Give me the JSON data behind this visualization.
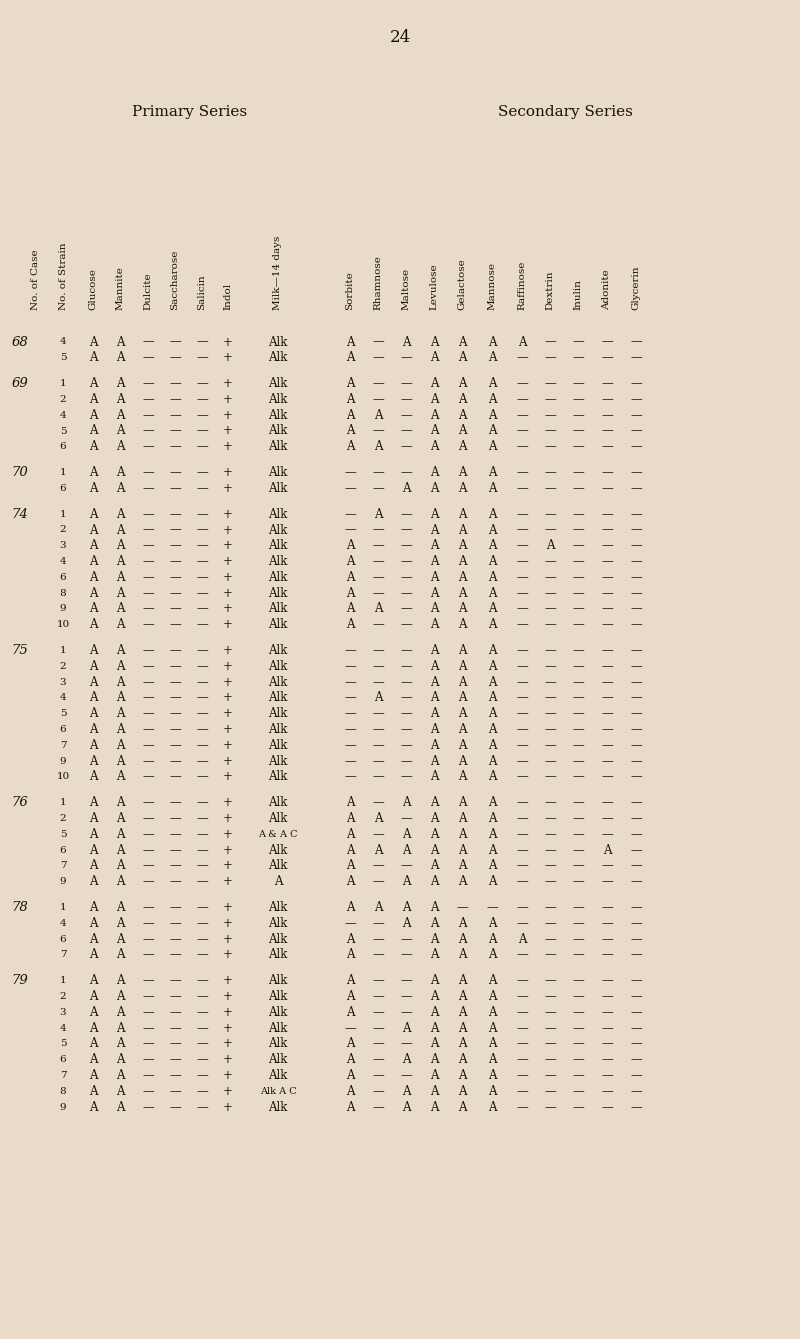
{
  "page_number": "24",
  "bg_color": "#e8dcc8",
  "text_color": "#1a1008",
  "primary_series_label": "Primary Series",
  "secondary_series_label": "Secondary Series",
  "col_headers": [
    {
      "key": "case",
      "label": "No. of Case"
    },
    {
      "key": "strain",
      "label": "No. of Strain"
    },
    {
      "key": "gluc",
      "label": "Glucose"
    },
    {
      "key": "mann",
      "label": "Mannite"
    },
    {
      "key": "dulc",
      "label": "Dulcite"
    },
    {
      "key": "sacc",
      "label": "Saccharose"
    },
    {
      "key": "sali",
      "label": "Salicin"
    },
    {
      "key": "indo",
      "label": "Indol"
    },
    {
      "key": "milk",
      "label": "Milk—14 days"
    },
    {
      "key": "sorb",
      "label": "Sorbite"
    },
    {
      "key": "rham",
      "label": "Rhamnose"
    },
    {
      "key": "malt",
      "label": "Maltose"
    },
    {
      "key": "levu",
      "label": "Levulose"
    },
    {
      "key": "gela",
      "label": "Gelactose"
    },
    {
      "key": "manno",
      "label": "Mannose"
    },
    {
      "key": "raff",
      "label": "Raffinose"
    },
    {
      "key": "dext",
      "label": "Dextrin"
    },
    {
      "key": "inul",
      "label": "Inulin"
    },
    {
      "key": "adon",
      "label": "Adonite"
    },
    {
      "key": "glyc",
      "label": "Glycerin"
    }
  ],
  "col_x": {
    "case": 36,
    "strain": 63,
    "gluc": 93,
    "mann": 120,
    "dulc": 148,
    "sacc": 175,
    "sali": 202,
    "indo": 228,
    "milk": 278,
    "sorb": 350,
    "rham": 378,
    "malt": 406,
    "levu": 434,
    "gela": 462,
    "manno": 492,
    "raff": 522,
    "dext": 550,
    "inul": 578,
    "adon": 607,
    "glyc": 636
  },
  "rows": [
    {
      "case": "68",
      "strain": "4",
      "gluc": "A",
      "mann": "A",
      "dulc": "—",
      "sacc": "—",
      "sali": "—",
      "indo": "+",
      "milk": "Alk",
      "sorb": "A",
      "rham": "—",
      "malt": "A",
      "levu": "A",
      "gela": "A",
      "manno": "A",
      "raff": "A",
      "dext": "—",
      "inul": "—",
      "adon": "—",
      "glyc": "—"
    },
    {
      "case": "",
      "strain": "5",
      "gluc": "A",
      "mann": "A",
      "dulc": "—",
      "sacc": "—",
      "sali": "—",
      "indo": "+",
      "milk": "Alk",
      "sorb": "A",
      "rham": "—",
      "malt": "—",
      "levu": "A",
      "gela": "A",
      "manno": "A",
      "raff": "—",
      "dext": "—",
      "inul": "—",
      "adon": "—",
      "glyc": "—"
    },
    {
      "case": "69",
      "strain": "1",
      "gluc": "A",
      "mann": "A",
      "dulc": "—",
      "sacc": "—",
      "sali": "—",
      "indo": "+",
      "milk": "Alk",
      "sorb": "A",
      "rham": "—",
      "malt": "—",
      "levu": "A",
      "gela": "A",
      "manno": "A",
      "raff": "—",
      "dext": "—",
      "inul": "—",
      "adon": "—",
      "glyc": "—"
    },
    {
      "case": "",
      "strain": "2",
      "gluc": "A",
      "mann": "A",
      "dulc": "—",
      "sacc": "—",
      "sali": "—",
      "indo": "+",
      "milk": "Alk",
      "sorb": "A",
      "rham": "—",
      "malt": "—",
      "levu": "A",
      "gela": "A",
      "manno": "A",
      "raff": "—",
      "dext": "—",
      "inul": "—",
      "adon": "—",
      "glyc": "—"
    },
    {
      "case": "",
      "strain": "4",
      "gluc": "A",
      "mann": "A",
      "dulc": "—",
      "sacc": "—",
      "sali": "—",
      "indo": "+",
      "milk": "Alk",
      "sorb": "A",
      "rham": "A",
      "malt": "—",
      "levu": "A",
      "gela": "A",
      "manno": "A",
      "raff": "—",
      "dext": "—",
      "inul": "—",
      "adon": "—",
      "glyc": "—"
    },
    {
      "case": "",
      "strain": "5",
      "gluc": "A",
      "mann": "A",
      "dulc": "—",
      "sacc": "—",
      "sali": "—",
      "indo": "+",
      "milk": "Alk",
      "sorb": "A",
      "rham": "—",
      "malt": "—",
      "levu": "A",
      "gela": "A",
      "manno": "A",
      "raff": "—",
      "dext": "—",
      "inul": "—",
      "adon": "—",
      "glyc": "—"
    },
    {
      "case": "",
      "strain": "6",
      "gluc": "A",
      "mann": "A",
      "dulc": "—",
      "sacc": "—",
      "sali": "—",
      "indo": "+",
      "milk": "Alk",
      "sorb": "A",
      "rham": "A",
      "malt": "—",
      "levu": "A",
      "gela": "A",
      "manno": "A",
      "raff": "—",
      "dext": "—",
      "inul": "—",
      "adon": "—",
      "glyc": "—"
    },
    {
      "case": "70",
      "strain": "1",
      "gluc": "A",
      "mann": "A",
      "dulc": "—",
      "sacc": "—",
      "sali": "—",
      "indo": "+",
      "milk": "Alk",
      "sorb": "—",
      "rham": "—",
      "malt": "—",
      "levu": "A",
      "gela": "A",
      "manno": "A",
      "raff": "—",
      "dext": "—",
      "inul": "—",
      "adon": "—",
      "glyc": "—"
    },
    {
      "case": "",
      "strain": "6",
      "gluc": "A",
      "mann": "A",
      "dulc": "—",
      "sacc": "—",
      "sali": "—",
      "indo": "+",
      "milk": "Alk",
      "sorb": "—",
      "rham": "—",
      "malt": "A",
      "levu": "A",
      "gela": "A",
      "manno": "A",
      "raff": "—",
      "dext": "—",
      "inul": "—",
      "adon": "—",
      "glyc": "—"
    },
    {
      "case": "74",
      "strain": "1",
      "gluc": "A",
      "mann": "A",
      "dulc": "—",
      "sacc": "—",
      "sali": "—",
      "indo": "+",
      "milk": "Alk",
      "sorb": "—",
      "rham": "A",
      "malt": "—",
      "levu": "A",
      "gela": "A",
      "manno": "A",
      "raff": "—",
      "dext": "—",
      "inul": "—",
      "adon": "—",
      "glyc": "—"
    },
    {
      "case": "",
      "strain": "2",
      "gluc": "A",
      "mann": "A",
      "dulc": "—",
      "sacc": "—",
      "sali": "—",
      "indo": "+",
      "milk": "Alk",
      "sorb": "—",
      "rham": "—",
      "malt": "—",
      "levu": "A",
      "gela": "A",
      "manno": "A",
      "raff": "—",
      "dext": "—",
      "inul": "—",
      "adon": "—",
      "glyc": "—"
    },
    {
      "case": "",
      "strain": "3",
      "gluc": "A",
      "mann": "A",
      "dulc": "—",
      "sacc": "—",
      "sali": "—",
      "indo": "+",
      "milk": "Alk",
      "sorb": "A",
      "rham": "—",
      "malt": "—",
      "levu": "A",
      "gela": "A",
      "manno": "A",
      "raff": "—",
      "dext": "A",
      "inul": "—",
      "adon": "—",
      "glyc": "—"
    },
    {
      "case": "",
      "strain": "4",
      "gluc": "A",
      "mann": "A",
      "dulc": "—",
      "sacc": "—",
      "sali": "—",
      "indo": "+",
      "milk": "Alk",
      "sorb": "A",
      "rham": "—",
      "malt": "—",
      "levu": "A",
      "gela": "A",
      "manno": "A",
      "raff": "—",
      "dext": "—",
      "inul": "—",
      "adon": "—",
      "glyc": "—"
    },
    {
      "case": "",
      "strain": "6",
      "gluc": "A",
      "mann": "A",
      "dulc": "—",
      "sacc": "—",
      "sali": "—",
      "indo": "+",
      "milk": "Alk",
      "sorb": "A",
      "rham": "—",
      "malt": "—",
      "levu": "A",
      "gela": "A",
      "manno": "A",
      "raff": "—",
      "dext": "—",
      "inul": "—",
      "adon": "—",
      "glyc": "—"
    },
    {
      "case": "",
      "strain": "8",
      "gluc": "A",
      "mann": "A",
      "dulc": "—",
      "sacc": "—",
      "sali": "—",
      "indo": "+",
      "milk": "Alk",
      "sorb": "A",
      "rham": "—",
      "malt": "—",
      "levu": "A",
      "gela": "A",
      "manno": "A",
      "raff": "—",
      "dext": "—",
      "inul": "—",
      "adon": "—",
      "glyc": "—"
    },
    {
      "case": "",
      "strain": "9",
      "gluc": "A",
      "mann": "A",
      "dulc": "—",
      "sacc": "—",
      "sali": "—",
      "indo": "+",
      "milk": "Alk",
      "sorb": "A",
      "rham": "A",
      "malt": "—",
      "levu": "A",
      "gela": "A",
      "manno": "A",
      "raff": "—",
      "dext": "—",
      "inul": "—",
      "adon": "—",
      "glyc": "—"
    },
    {
      "case": "",
      "strain": "10",
      "gluc": "A",
      "mann": "A",
      "dulc": "—",
      "sacc": "—",
      "sali": "—",
      "indo": "+",
      "milk": "Alk",
      "sorb": "A",
      "rham": "—",
      "malt": "—",
      "levu": "A",
      "gela": "A",
      "manno": "A",
      "raff": "—",
      "dext": "—",
      "inul": "—",
      "adon": "—",
      "glyc": "—"
    },
    {
      "case": "75",
      "strain": "1",
      "gluc": "A",
      "mann": "A",
      "dulc": "—",
      "sacc": "—",
      "sali": "—",
      "indo": "+",
      "milk": "Alk",
      "sorb": "—",
      "rham": "—",
      "malt": "—",
      "levu": "A",
      "gela": "A",
      "manno": "A",
      "raff": "—",
      "dext": "—",
      "inul": "—",
      "adon": "—",
      "glyc": "—"
    },
    {
      "case": "",
      "strain": "2",
      "gluc": "A",
      "mann": "A",
      "dulc": "—",
      "sacc": "—",
      "sali": "—",
      "indo": "+",
      "milk": "Alk",
      "sorb": "—",
      "rham": "—",
      "malt": "—",
      "levu": "A",
      "gela": "A",
      "manno": "A",
      "raff": "—",
      "dext": "—",
      "inul": "—",
      "adon": "—",
      "glyc": "—"
    },
    {
      "case": "",
      "strain": "3",
      "gluc": "A",
      "mann": "A",
      "dulc": "—",
      "sacc": "—",
      "sali": "—",
      "indo": "+",
      "milk": "Alk",
      "sorb": "—",
      "rham": "—",
      "malt": "—",
      "levu": "A",
      "gela": "A",
      "manno": "A",
      "raff": "—",
      "dext": "—",
      "inul": "—",
      "adon": "—",
      "glyc": "—"
    },
    {
      "case": "",
      "strain": "4",
      "gluc": "A",
      "mann": "A",
      "dulc": "—",
      "sacc": "—",
      "sali": "—",
      "indo": "+",
      "milk": "Alk",
      "sorb": "—",
      "rham": "A",
      "malt": "—",
      "levu": "A",
      "gela": "A",
      "manno": "A",
      "raff": "—",
      "dext": "—",
      "inul": "—",
      "adon": "—",
      "glyc": "—"
    },
    {
      "case": "",
      "strain": "5",
      "gluc": "A",
      "mann": "A",
      "dulc": "—",
      "sacc": "—",
      "sali": "—",
      "indo": "+",
      "milk": "Alk",
      "sorb": "—",
      "rham": "—",
      "malt": "—",
      "levu": "A",
      "gela": "A",
      "manno": "A",
      "raff": "—",
      "dext": "—",
      "inul": "—",
      "adon": "—",
      "glyc": "—"
    },
    {
      "case": "",
      "strain": "6",
      "gluc": "A",
      "mann": "A",
      "dulc": "—",
      "sacc": "—",
      "sali": "—",
      "indo": "+",
      "milk": "Alk",
      "sorb": "—",
      "rham": "—",
      "malt": "—",
      "levu": "A",
      "gela": "A",
      "manno": "A",
      "raff": "—",
      "dext": "—",
      "inul": "—",
      "adon": "—",
      "glyc": "—"
    },
    {
      "case": "",
      "strain": "7",
      "gluc": "A",
      "mann": "A",
      "dulc": "—",
      "sacc": "—",
      "sali": "—",
      "indo": "+",
      "milk": "Alk",
      "sorb": "—",
      "rham": "—",
      "malt": "—",
      "levu": "A",
      "gela": "A",
      "manno": "A",
      "raff": "—",
      "dext": "—",
      "inul": "—",
      "adon": "—",
      "glyc": "—"
    },
    {
      "case": "",
      "strain": "9",
      "gluc": "A",
      "mann": "A",
      "dulc": "—",
      "sacc": "—",
      "sali": "—",
      "indo": "+",
      "milk": "Alk",
      "sorb": "—",
      "rham": "—",
      "malt": "—",
      "levu": "A",
      "gela": "A",
      "manno": "A",
      "raff": "—",
      "dext": "—",
      "inul": "—",
      "adon": "—",
      "glyc": "—"
    },
    {
      "case": "",
      "strain": "10",
      "gluc": "A",
      "mann": "A",
      "dulc": "—",
      "sacc": "—",
      "sali": "—",
      "indo": "+",
      "milk": "Alk",
      "sorb": "—",
      "rham": "—",
      "malt": "—",
      "levu": "A",
      "gela": "A",
      "manno": "A",
      "raff": "—",
      "dext": "—",
      "inul": "—",
      "adon": "—",
      "glyc": "—"
    },
    {
      "case": "76",
      "strain": "1",
      "gluc": "A",
      "mann": "A",
      "dulc": "—",
      "sacc": "—",
      "sali": "—",
      "indo": "+",
      "milk": "Alk",
      "sorb": "A",
      "rham": "—",
      "malt": "A",
      "levu": "A",
      "gela": "A",
      "manno": "A",
      "raff": "—",
      "dext": "—",
      "inul": "—",
      "adon": "—",
      "glyc": "—"
    },
    {
      "case": "",
      "strain": "2",
      "gluc": "A",
      "mann": "A",
      "dulc": "—",
      "sacc": "—",
      "sali": "—",
      "indo": "+",
      "milk": "Alk",
      "sorb": "A",
      "rham": "A",
      "malt": "—",
      "levu": "A",
      "gela": "A",
      "manno": "A",
      "raff": "—",
      "dext": "—",
      "inul": "—",
      "adon": "—",
      "glyc": "—"
    },
    {
      "case": "",
      "strain": "5",
      "gluc": "A",
      "mann": "A",
      "dulc": "—",
      "sacc": "—",
      "sali": "—",
      "indo": "+",
      "milk": "A & A C",
      "sorb": "A",
      "rham": "—",
      "malt": "A",
      "levu": "A",
      "gela": "A",
      "manno": "A",
      "raff": "—",
      "dext": "—",
      "inul": "—",
      "adon": "—",
      "glyc": "—"
    },
    {
      "case": "",
      "strain": "6",
      "gluc": "A",
      "mann": "A",
      "dulc": "—",
      "sacc": "—",
      "sali": "—",
      "indo": "+",
      "milk": "Alk",
      "sorb": "A",
      "rham": "A",
      "malt": "A",
      "levu": "A",
      "gela": "A",
      "manno": "A",
      "raff": "—",
      "dext": "—",
      "inul": "—",
      "adon": "A",
      "glyc": "—"
    },
    {
      "case": "",
      "strain": "7",
      "gluc": "A",
      "mann": "A",
      "dulc": "—",
      "sacc": "—",
      "sali": "—",
      "indo": "+",
      "milk": "Alk",
      "sorb": "A",
      "rham": "—",
      "malt": "—",
      "levu": "A",
      "gela": "A",
      "manno": "A",
      "raff": "—",
      "dext": "—",
      "inul": "—",
      "adon": "—",
      "glyc": "—"
    },
    {
      "case": "",
      "strain": "9",
      "gluc": "A",
      "mann": "A",
      "dulc": "—",
      "sacc": "—",
      "sali": "—",
      "indo": "+",
      "milk": "A",
      "sorb": "A",
      "rham": "—",
      "malt": "A",
      "levu": "A",
      "gela": "A",
      "manno": "A",
      "raff": "—",
      "dext": "—",
      "inul": "—",
      "adon": "—",
      "glyc": "—"
    },
    {
      "case": "78",
      "strain": "1",
      "gluc": "A",
      "mann": "A",
      "dulc": "—",
      "sacc": "—",
      "sali": "—",
      "indo": "+",
      "milk": "Alk",
      "sorb": "A",
      "rham": "A",
      "malt": "A",
      "levu": "A",
      "gela": "—",
      "manno": "—",
      "raff": "—",
      "dext": "—",
      "inul": "—",
      "adon": "—",
      "glyc": "—"
    },
    {
      "case": "",
      "strain": "4",
      "gluc": "A",
      "mann": "A",
      "dulc": "—",
      "sacc": "—",
      "sali": "—",
      "indo": "+",
      "milk": "Alk",
      "sorb": "—",
      "rham": "—",
      "malt": "A",
      "levu": "A",
      "gela": "A",
      "manno": "A",
      "raff": "—",
      "dext": "—",
      "inul": "—",
      "adon": "—",
      "glyc": "—"
    },
    {
      "case": "",
      "strain": "6",
      "gluc": "A",
      "mann": "A",
      "dulc": "—",
      "sacc": "—",
      "sali": "—",
      "indo": "+",
      "milk": "Alk",
      "sorb": "A",
      "rham": "—",
      "malt": "—",
      "levu": "A",
      "gela": "A",
      "manno": "A",
      "raff": "A",
      "dext": "—",
      "inul": "—",
      "adon": "—",
      "glyc": "—"
    },
    {
      "case": "",
      "strain": "7",
      "gluc": "A",
      "mann": "A",
      "dulc": "—",
      "sacc": "—",
      "sali": "—",
      "indo": "+",
      "milk": "Alk",
      "sorb": "A",
      "rham": "—",
      "malt": "—",
      "levu": "A",
      "gela": "A",
      "manno": "A",
      "raff": "—",
      "dext": "—",
      "inul": "—",
      "adon": "—",
      "glyc": "—"
    },
    {
      "case": "79",
      "strain": "1",
      "gluc": "A",
      "mann": "A",
      "dulc": "—",
      "sacc": "—",
      "sali": "—",
      "indo": "+",
      "milk": "Alk",
      "sorb": "A",
      "rham": "—",
      "malt": "—",
      "levu": "A",
      "gela": "A",
      "manno": "A",
      "raff": "—",
      "dext": "—",
      "inul": "—",
      "adon": "—",
      "glyc": "—"
    },
    {
      "case": "",
      "strain": "2",
      "gluc": "A",
      "mann": "A",
      "dulc": "—",
      "sacc": "—",
      "sali": "—",
      "indo": "+",
      "milk": "Alk",
      "sorb": "A",
      "rham": "—",
      "malt": "—",
      "levu": "A",
      "gela": "A",
      "manno": "A",
      "raff": "—",
      "dext": "—",
      "inul": "—",
      "adon": "—",
      "glyc": "—"
    },
    {
      "case": "",
      "strain": "3",
      "gluc": "A",
      "mann": "A",
      "dulc": "—",
      "sacc": "—",
      "sali": "—",
      "indo": "+",
      "milk": "Alk",
      "sorb": "A",
      "rham": "—",
      "malt": "—",
      "levu": "A",
      "gela": "A",
      "manno": "A",
      "raff": "—",
      "dext": "—",
      "inul": "—",
      "adon": "—",
      "glyc": "—"
    },
    {
      "case": "",
      "strain": "4",
      "gluc": "A",
      "mann": "A",
      "dulc": "—",
      "sacc": "—",
      "sali": "—",
      "indo": "+",
      "milk": "Alk",
      "sorb": "—",
      "rham": "—",
      "malt": "A",
      "levu": "A",
      "gela": "A",
      "manno": "A",
      "raff": "—",
      "dext": "—",
      "inul": "—",
      "adon": "—",
      "glyc": "—"
    },
    {
      "case": "",
      "strain": "5",
      "gluc": "A",
      "mann": "A",
      "dulc": "—",
      "sacc": "—",
      "sali": "—",
      "indo": "+",
      "milk": "Alk",
      "sorb": "A",
      "rham": "—",
      "malt": "—",
      "levu": "A",
      "gela": "A",
      "manno": "A",
      "raff": "—",
      "dext": "—",
      "inul": "—",
      "adon": "—",
      "glyc": "—"
    },
    {
      "case": "",
      "strain": "6",
      "gluc": "A",
      "mann": "A",
      "dulc": "—",
      "sacc": "—",
      "sali": "—",
      "indo": "+",
      "milk": "Alk",
      "sorb": "A",
      "rham": "—",
      "malt": "A",
      "levu": "A",
      "gela": "A",
      "manno": "A",
      "raff": "—",
      "dext": "—",
      "inul": "—",
      "adon": "—",
      "glyc": "—"
    },
    {
      "case": "",
      "strain": "7",
      "gluc": "A",
      "mann": "A",
      "dulc": "—",
      "sacc": "—",
      "sali": "—",
      "indo": "+",
      "milk": "Alk",
      "sorb": "A",
      "rham": "—",
      "malt": "—",
      "levu": "A",
      "gela": "A",
      "manno": "A",
      "raff": "—",
      "dext": "—",
      "inul": "—",
      "adon": "—",
      "glyc": "—"
    },
    {
      "case": "",
      "strain": "8",
      "gluc": "A",
      "mann": "A",
      "dulc": "—",
      "sacc": "—",
      "sali": "—",
      "indo": "+",
      "milk": "Alk A C",
      "sorb": "A",
      "rham": "—",
      "malt": "A",
      "levu": "A",
      "gela": "A",
      "manno": "A",
      "raff": "—",
      "dext": "—",
      "inul": "—",
      "adon": "—",
      "glyc": "—"
    },
    {
      "case": "",
      "strain": "9",
      "gluc": "A",
      "mann": "A",
      "dulc": "—",
      "sacc": "—",
      "sali": "—",
      "indo": "+",
      "milk": "Alk",
      "sorb": "A",
      "rham": "—",
      "malt": "A",
      "levu": "A",
      "gela": "A",
      "manno": "A",
      "raff": "—",
      "dext": "—",
      "inul": "—",
      "adon": "—",
      "glyc": "—"
    }
  ]
}
